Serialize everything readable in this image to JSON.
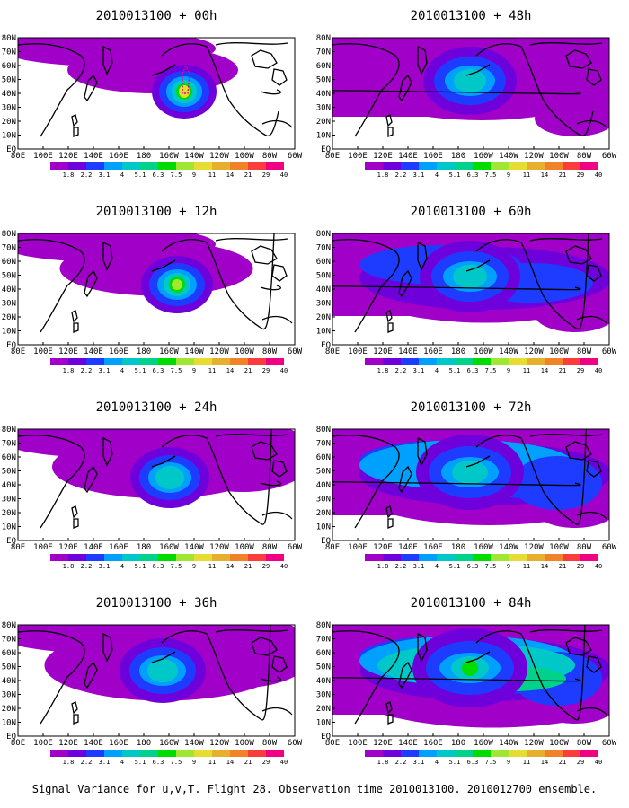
{
  "caption": "Signal Variance for u,v,T. Flight 28. Observation time 2010013100. 2010012700 ensemble.",
  "lat_ticks": [
    "80N",
    "70N",
    "60N",
    "50N",
    "40N",
    "30N",
    "20N",
    "10N",
    "EQ"
  ],
  "lon_ticks": [
    "80E",
    "100E",
    "120E",
    "140E",
    "160E",
    "180",
    "160W",
    "140W",
    "120W",
    "100W",
    "80W",
    "60W"
  ],
  "colorbar": {
    "labels": [
      "1.8",
      "2.2",
      "3.1",
      "4",
      "5.1",
      "6.3",
      "7.5",
      "9",
      "11",
      "14",
      "21",
      "29",
      "40"
    ],
    "colors": [
      "#a000c8",
      "#6e00dc",
      "#1e3cff",
      "#00a0ff",
      "#00c8c8",
      "#00d28c",
      "#00dc00",
      "#a0e632",
      "#e6dc32",
      "#e6af2d",
      "#f08228",
      "#fa3c3c",
      "#f00082"
    ]
  },
  "panels": [
    {
      "title": "2010013100 + 00h"
    },
    {
      "title": "2010013100 + 48h"
    },
    {
      "title": "2010013100 + 12h"
    },
    {
      "title": "2010013100 + 60h"
    },
    {
      "title": "2010013100 + 24h"
    },
    {
      "title": "2010013100 + 72h"
    },
    {
      "title": "2010013100 + 36h"
    },
    {
      "title": "2010013100 + 84h"
    }
  ]
}
